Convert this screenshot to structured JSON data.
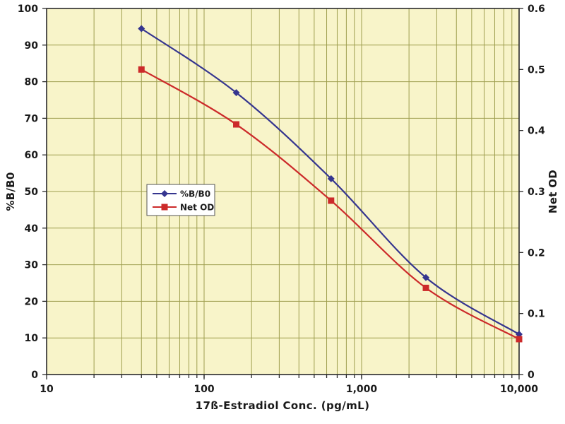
{
  "chart_data": {
    "type": "line",
    "title": "",
    "xlabel": "17ß-Estradiol Conc. (pg/mL)",
    "ylabel_left": "%B/B0",
    "ylabel_right": "Net OD",
    "x_scale": "log",
    "xlim": [
      10,
      10000
    ],
    "ylim_left": [
      0,
      100
    ],
    "ylim_right": [
      0,
      0.6
    ],
    "grid": true,
    "plot_bg": "#f8f4c9",
    "grid_color": "#9e9e4e",
    "frame_color": "#2a2a2a",
    "x_ticks": [
      {
        "v": 10,
        "label": "10"
      },
      {
        "v": 100,
        "label": "100"
      },
      {
        "v": 1000,
        "label": "1,000"
      },
      {
        "v": 10000,
        "label": "10,000"
      }
    ],
    "y_left_ticks": [
      {
        "v": 0,
        "label": "0"
      },
      {
        "v": 10,
        "label": "10"
      },
      {
        "v": 20,
        "label": "20"
      },
      {
        "v": 30,
        "label": "30"
      },
      {
        "v": 40,
        "label": "40"
      },
      {
        "v": 50,
        "label": "50"
      },
      {
        "v": 60,
        "label": "60"
      },
      {
        "v": 70,
        "label": "70"
      },
      {
        "v": 80,
        "label": "80"
      },
      {
        "v": 90,
        "label": "90"
      },
      {
        "v": 100,
        "label": "100"
      }
    ],
    "y_right_ticks": [
      {
        "v": 0,
        "label": "0"
      },
      {
        "v": 0.1,
        "label": "0.1"
      },
      {
        "v": 0.2,
        "label": "0.2"
      },
      {
        "v": 0.3,
        "label": "0.3"
      },
      {
        "v": 0.4,
        "label": "0.4"
      },
      {
        "v": 0.5,
        "label": "0.5"
      },
      {
        "v": 0.6,
        "label": "0.6"
      }
    ],
    "series": [
      {
        "name": "%B/B0",
        "axis": "left",
        "color": "#35358f",
        "marker": "diamond",
        "x": [
          40,
          160,
          640,
          2560,
          10000
        ],
        "values": [
          94.5,
          77,
          53.5,
          26.5,
          11
        ]
      },
      {
        "name": "Net OD",
        "axis": "right",
        "color": "#cc2a2a",
        "marker": "square",
        "x": [
          40,
          160,
          640,
          2560,
          10000
        ],
        "values": [
          0.5,
          0.41,
          0.285,
          0.142,
          0.058
        ]
      }
    ],
    "legend": {
      "position": "middle-left",
      "entries": [
        "%B/B0",
        "Net OD"
      ]
    }
  }
}
